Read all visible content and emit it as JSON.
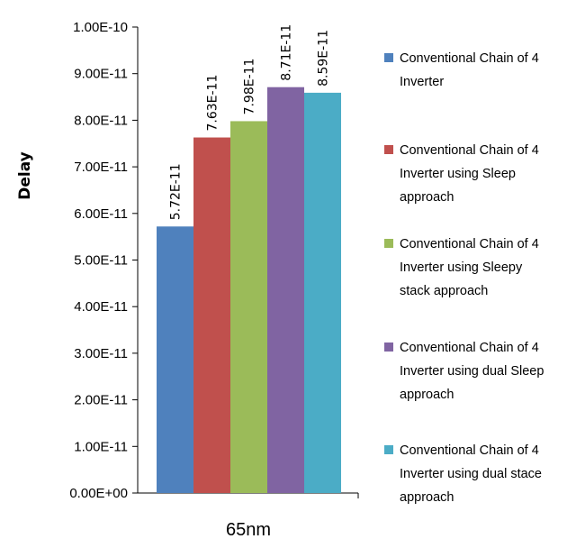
{
  "chart_data": {
    "type": "bar",
    "categories": [
      "65nm"
    ],
    "ylabel": "Delay",
    "xlabel": "",
    "ylim": [
      0,
      1e-10
    ],
    "yticks": [
      "0.00E+00",
      "1.00E-11",
      "2.00E-11",
      "3.00E-11",
      "4.00E-11",
      "5.00E-11",
      "6.00E-11",
      "7.00E-11",
      "8.00E-11",
      "9.00E-11",
      "1.00E-10"
    ],
    "grid": false,
    "legend_position": "right",
    "series": [
      {
        "name": "Conventional Chain of 4 Inverter",
        "legend_lines": [
          "Conventional Chain of 4",
          "Inverter"
        ],
        "values": [
          5.72e-11
        ],
        "label": "5.72E-11",
        "color": "#4f81bd"
      },
      {
        "name": "Conventional Chain of 4 Inverter using Sleep approach",
        "legend_lines": [
          "Conventional Chain of 4",
          "Inverter using Sleep",
          "approach"
        ],
        "values": [
          7.63e-11
        ],
        "label": "7.63E-11",
        "color": "#c0504d"
      },
      {
        "name": "Conventional Chain of 4 Inverter using Sleepy stack approach",
        "legend_lines": [
          "Conventional Chain of 4",
          "Inverter using Sleepy",
          "stack approach"
        ],
        "values": [
          7.98e-11
        ],
        "label": "7.98E-11",
        "color": "#9bbb59"
      },
      {
        "name": "Conventional Chain of 4 Inverter using dual Sleep approach",
        "legend_lines": [
          "Conventional Chain of 4",
          "Inverter using dual Sleep",
          "approach"
        ],
        "values": [
          8.71e-11
        ],
        "label": "8.71E-11",
        "color": "#8064a2"
      },
      {
        "name": "Conventional Chain of 4 Inverter using dual stace approach",
        "legend_lines": [
          "Conventional Chain of 4",
          "Inverter using dual stace",
          "approach"
        ],
        "values": [
          8.59e-11
        ],
        "label": "8.59E-11",
        "color": "#4bacc6"
      }
    ]
  }
}
